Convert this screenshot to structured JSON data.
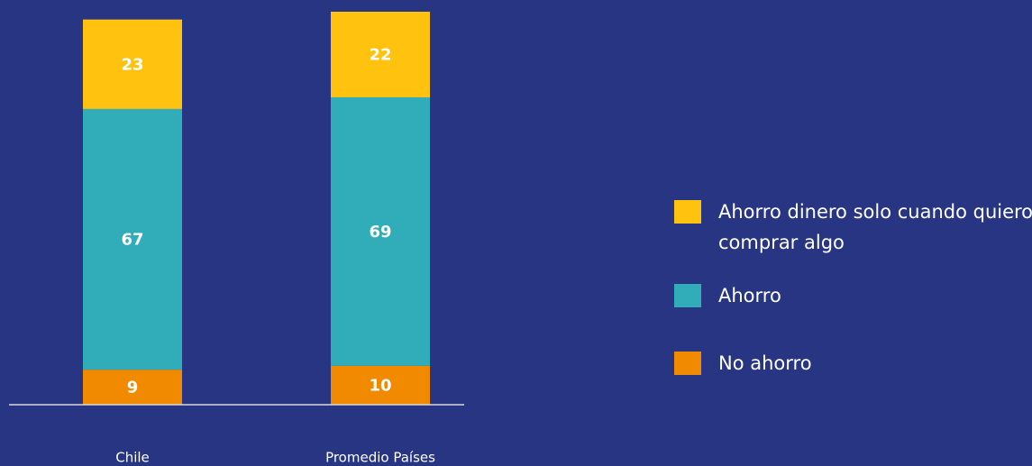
{
  "chart_data": {
    "type": "stacked_bar",
    "categories": [
      "Chile",
      "Promedio Países"
    ],
    "series": [
      {
        "name": "No ahorro",
        "color": "#f28a00",
        "values": [
          9,
          10
        ]
      },
      {
        "name": "Ahorro",
        "color": "#31adb9",
        "values": [
          67,
          69
        ]
      },
      {
        "name": "Ahorro dinero solo cuando quiero comprar algo",
        "color": "#ffc20e",
        "values": [
          23,
          22
        ]
      }
    ],
    "ylim": [
      0,
      101
    ],
    "legend": "right"
  }
}
